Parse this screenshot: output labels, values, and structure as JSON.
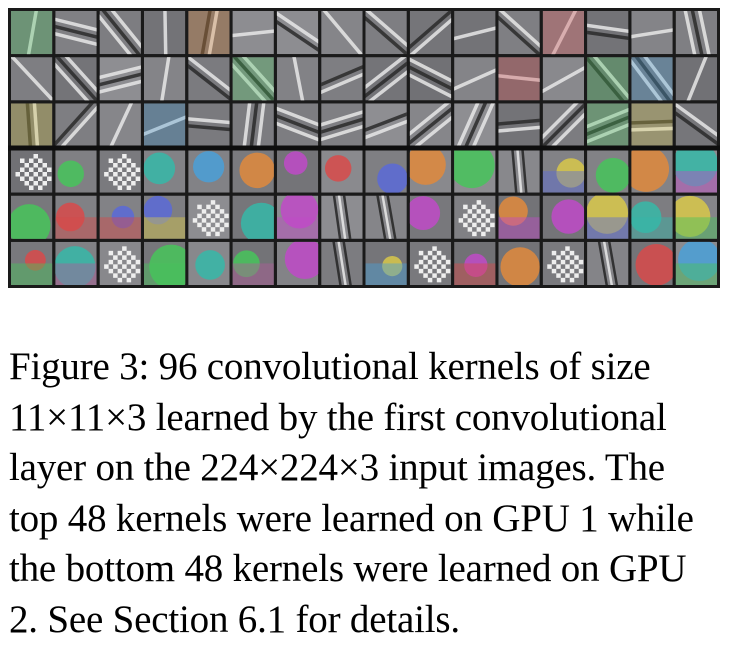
{
  "figure": {
    "kernel_count": 96,
    "rows": 6,
    "cols": 16,
    "groups": [
      {
        "name": "GPU 1",
        "rows": [
          0,
          1,
          2
        ],
        "style": "grayscale-edge"
      },
      {
        "name": "GPU 2",
        "rows": [
          3,
          4,
          5
        ],
        "style": "color-blob"
      }
    ],
    "colors": {
      "background": "#1a1a1a",
      "neutral_gray": "#8c8c8c"
    }
  },
  "caption": {
    "lines": [
      "Figure 3: 96 convolutional kernels of size",
      "11×11×3 learned by the first convolutional",
      "layer on the 224×224×3 input images. The",
      "top 48 kernels were learned on GPU 1 while",
      "the bottom 48 kernels were learned on GPU",
      "2. See Section 6.1 for details."
    ]
  }
}
